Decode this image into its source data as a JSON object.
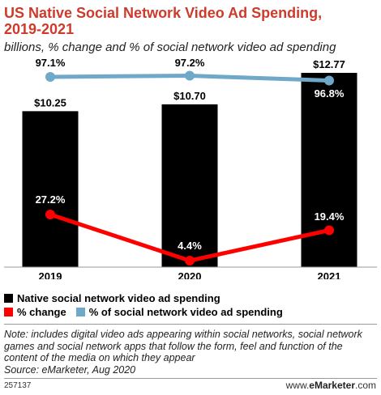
{
  "header": {
    "title_line1": "US Native Social Network Video Ad Spending,",
    "title_line2": "2019-2021",
    "subtitle": "billions, % change and % of social network video ad spending"
  },
  "colors": {
    "title": "#cc3b2c",
    "bar": "#000000",
    "change_line": "#ff0000",
    "share_line": "#6fa8c8"
  },
  "chart_data": {
    "type": "bar",
    "categories": [
      "2019",
      "2020",
      "2021"
    ],
    "series": [
      {
        "name": "Native social network video ad spending",
        "type": "bar",
        "values": [
          10.25,
          10.7,
          12.77
        ],
        "labels": [
          "$10.25",
          "$10.70",
          "$12.77"
        ]
      },
      {
        "name": "% change",
        "type": "line",
        "values": [
          27.2,
          4.4,
          19.4
        ],
        "labels": [
          "27.2%",
          "4.4%",
          "19.4%"
        ]
      },
      {
        "name": "% of social network video ad spending",
        "type": "line",
        "values": [
          97.1,
          97.2,
          96.8
        ],
        "labels": [
          "97.1%",
          "97.2%",
          "96.8%"
        ]
      }
    ],
    "legend_placement": "bottom",
    "grid": false
  },
  "legend": {
    "item1": "Native social network video ad spending",
    "item2": "% change",
    "item3": "% of social network video ad spending"
  },
  "note": "Note: includes digital video ads appearing within social networks, social network games and social network apps that follow the form, feel and function of the content of the media on which they appear",
  "source": "Source: eMarketer, Aug 2020",
  "footer": {
    "chart_id": "257137",
    "brand_prefix": "www.",
    "brand_name": "eMarketer",
    "brand_suffix": ".com"
  }
}
